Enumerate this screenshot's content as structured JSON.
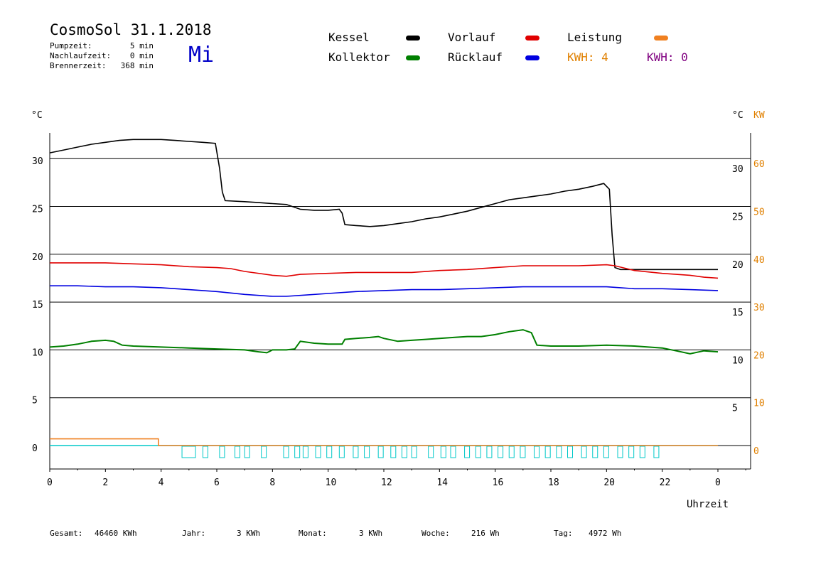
{
  "header": {
    "title": "CosmoSol 31.1.2018",
    "weekday": "Mi",
    "info": [
      {
        "label": "Pumpzeit:",
        "value": "5 min"
      },
      {
        "label": "Nachlaufzeit:",
        "value": "0 min"
      },
      {
        "label": "Brennerzeit:",
        "value": "368 min"
      }
    ]
  },
  "legend": [
    {
      "label": "Kessel",
      "color": "#000000"
    },
    {
      "label": "Vorlauf",
      "color": "#e00000"
    },
    {
      "label": "Leistung",
      "color": "#f08020"
    },
    {
      "label": "Kollektor",
      "color": "#008000"
    },
    {
      "label": "Rücklauf",
      "color": "#0000e0"
    }
  ],
  "kwh": [
    {
      "label": "KWH: 4",
      "color": "#e08000"
    },
    {
      "label": "KWH: 0",
      "color": "#800080"
    }
  ],
  "axes": {
    "left_unit": "°C",
    "right_unit": "°C",
    "right_unit2": "KW",
    "x_label": "Uhrzeit"
  },
  "stats": [
    {
      "label": "Gesamt:",
      "value": "46460 KWh"
    },
    {
      "label": "Jahr:",
      "value": "3 KWh"
    },
    {
      "label": "Monat:",
      "value": "3 KWh"
    },
    {
      "label": "Woche:",
      "value": "216 Wh"
    },
    {
      "label": "Tag:",
      "value": "4972 Wh"
    }
  ],
  "chart_data": {
    "type": "line",
    "x_range": [
      0,
      24
    ],
    "x_ticks": [
      "0",
      "2",
      "4",
      "6",
      "8",
      "10",
      "12",
      "14",
      "16",
      "18",
      "20",
      "22",
      "0"
    ],
    "ylim_left": [
      -2.5,
      33
    ],
    "y_ticks_left": [
      "0",
      "5",
      "10",
      "15",
      "20",
      "25",
      "30"
    ],
    "y_ticks_right": [
      "5",
      "10",
      "15",
      "20",
      "25",
      "30"
    ],
    "y_ticks_kw": [
      "0",
      "10",
      "20",
      "30",
      "40",
      "50",
      "60"
    ],
    "grid": true,
    "series": [
      {
        "name": "Kessel",
        "color": "#000000",
        "points": [
          [
            0,
            30.6
          ],
          [
            0.5,
            30.9
          ],
          [
            1,
            31.2
          ],
          [
            1.5,
            31.5
          ],
          [
            2,
            31.7
          ],
          [
            2.5,
            31.9
          ],
          [
            3,
            32.0
          ],
          [
            3.5,
            32.0
          ],
          [
            4,
            32.0
          ],
          [
            4.5,
            31.9
          ],
          [
            5,
            31.8
          ],
          [
            5.5,
            31.7
          ],
          [
            5.95,
            31.6
          ],
          [
            6.1,
            29
          ],
          [
            6.2,
            26.5
          ],
          [
            6.3,
            25.6
          ],
          [
            7,
            25.5
          ],
          [
            7.5,
            25.4
          ],
          [
            8,
            25.3
          ],
          [
            8.5,
            25.2
          ],
          [
            9,
            24.7
          ],
          [
            9.5,
            24.6
          ],
          [
            10,
            24.6
          ],
          [
            10.4,
            24.7
          ],
          [
            10.5,
            24.3
          ],
          [
            10.6,
            23.1
          ],
          [
            11,
            23.0
          ],
          [
            11.5,
            22.9
          ],
          [
            12,
            23.0
          ],
          [
            12.5,
            23.2
          ],
          [
            13,
            23.4
          ],
          [
            13.5,
            23.7
          ],
          [
            14,
            23.9
          ],
          [
            14.5,
            24.2
          ],
          [
            15,
            24.5
          ],
          [
            15.5,
            24.9
          ],
          [
            16,
            25.3
          ],
          [
            16.5,
            25.7
          ],
          [
            17,
            25.9
          ],
          [
            17.5,
            26.1
          ],
          [
            18,
            26.3
          ],
          [
            18.5,
            26.6
          ],
          [
            19,
            26.8
          ],
          [
            19.5,
            27.1
          ],
          [
            19.9,
            27.4
          ],
          [
            20.1,
            26.8
          ],
          [
            20.2,
            22
          ],
          [
            20.3,
            18.6
          ],
          [
            20.5,
            18.4
          ],
          [
            21,
            18.4
          ],
          [
            21.5,
            18.4
          ],
          [
            22,
            18.4
          ],
          [
            22.5,
            18.4
          ],
          [
            23,
            18.4
          ],
          [
            23.5,
            18.4
          ],
          [
            24,
            18.4
          ]
        ]
      },
      {
        "name": "Vorlauf",
        "color": "#e00000",
        "points": [
          [
            0,
            19.1
          ],
          [
            1,
            19.1
          ],
          [
            2,
            19.1
          ],
          [
            3,
            19.0
          ],
          [
            4,
            18.9
          ],
          [
            5,
            18.7
          ],
          [
            6,
            18.6
          ],
          [
            6.5,
            18.5
          ],
          [
            7,
            18.2
          ],
          [
            8,
            17.8
          ],
          [
            8.5,
            17.7
          ],
          [
            9,
            17.9
          ],
          [
            10,
            18.0
          ],
          [
            11,
            18.1
          ],
          [
            12,
            18.1
          ],
          [
            13,
            18.1
          ],
          [
            14,
            18.3
          ],
          [
            15,
            18.4
          ],
          [
            16,
            18.6
          ],
          [
            17,
            18.8
          ],
          [
            18,
            18.8
          ],
          [
            19,
            18.8
          ],
          [
            20,
            18.9
          ],
          [
            20.3,
            18.8
          ],
          [
            21,
            18.3
          ],
          [
            22,
            18.0
          ],
          [
            23,
            17.8
          ],
          [
            23.5,
            17.6
          ],
          [
            24,
            17.5
          ]
        ]
      },
      {
        "name": "Rücklauf",
        "color": "#0000e0",
        "points": [
          [
            0,
            16.7
          ],
          [
            1,
            16.7
          ],
          [
            2,
            16.6
          ],
          [
            3,
            16.6
          ],
          [
            4,
            16.5
          ],
          [
            5,
            16.3
          ],
          [
            6,
            16.1
          ],
          [
            7,
            15.8
          ],
          [
            7.5,
            15.7
          ],
          [
            8,
            15.6
          ],
          [
            8.5,
            15.6
          ],
          [
            9,
            15.7
          ],
          [
            10,
            15.9
          ],
          [
            11,
            16.1
          ],
          [
            12,
            16.2
          ],
          [
            13,
            16.3
          ],
          [
            14,
            16.3
          ],
          [
            15,
            16.4
          ],
          [
            16,
            16.5
          ],
          [
            17,
            16.6
          ],
          [
            18,
            16.6
          ],
          [
            19,
            16.6
          ],
          [
            20,
            16.6
          ],
          [
            20.5,
            16.5
          ],
          [
            21,
            16.4
          ],
          [
            22,
            16.4
          ],
          [
            23,
            16.3
          ],
          [
            24,
            16.2
          ]
        ]
      },
      {
        "name": "Kollektor",
        "color": "#008000",
        "points": [
          [
            0,
            10.3
          ],
          [
            0.5,
            10.4
          ],
          [
            1,
            10.6
          ],
          [
            1.5,
            10.9
          ],
          [
            2,
            11.0
          ],
          [
            2.3,
            10.9
          ],
          [
            2.6,
            10.5
          ],
          [
            3,
            10.4
          ],
          [
            4,
            10.3
          ],
          [
            5,
            10.2
          ],
          [
            6,
            10.1
          ],
          [
            7,
            10.0
          ],
          [
            7.5,
            9.8
          ],
          [
            7.8,
            9.7
          ],
          [
            8,
            10.0
          ],
          [
            8.5,
            10.0
          ],
          [
            8.8,
            10.1
          ],
          [
            9.0,
            10.9
          ],
          [
            9.5,
            10.7
          ],
          [
            10,
            10.6
          ],
          [
            10.5,
            10.6
          ],
          [
            10.6,
            11.1
          ],
          [
            11,
            11.2
          ],
          [
            11.5,
            11.3
          ],
          [
            11.8,
            11.4
          ],
          [
            12,
            11.2
          ],
          [
            12.5,
            10.9
          ],
          [
            13,
            11.0
          ],
          [
            13.5,
            11.1
          ],
          [
            14,
            11.2
          ],
          [
            14.5,
            11.3
          ],
          [
            15,
            11.4
          ],
          [
            15.5,
            11.4
          ],
          [
            16,
            11.6
          ],
          [
            16.5,
            11.9
          ],
          [
            17,
            12.1
          ],
          [
            17.3,
            11.8
          ],
          [
            17.5,
            10.5
          ],
          [
            18,
            10.4
          ],
          [
            19,
            10.4
          ],
          [
            20,
            10.5
          ],
          [
            21,
            10.4
          ],
          [
            22,
            10.2
          ],
          [
            22.5,
            9.9
          ],
          [
            23,
            9.6
          ],
          [
            23.5,
            9.9
          ],
          [
            24,
            9.8
          ]
        ]
      },
      {
        "name": "Leistung",
        "color": "#f08020",
        "points": [
          [
            0,
            0.7
          ],
          [
            3.9,
            0.7
          ],
          [
            3.9,
            0
          ],
          [
            24,
            0
          ]
        ]
      }
    ],
    "pump_pulses_h": [
      4.75,
      5.5,
      6.1,
      6.65,
      7.0,
      7.6,
      8.4,
      8.8,
      9.1,
      9.55,
      9.95,
      10.4,
      10.9,
      11.3,
      11.8,
      12.25,
      12.65,
      13.0,
      13.6,
      14.05,
      14.4,
      14.9,
      15.3,
      15.7,
      16.1,
      16.5,
      16.9,
      17.4,
      17.8,
      18.2,
      18.6,
      19.1,
      19.5,
      19.9,
      20.4,
      20.8,
      21.2,
      21.7
    ]
  }
}
